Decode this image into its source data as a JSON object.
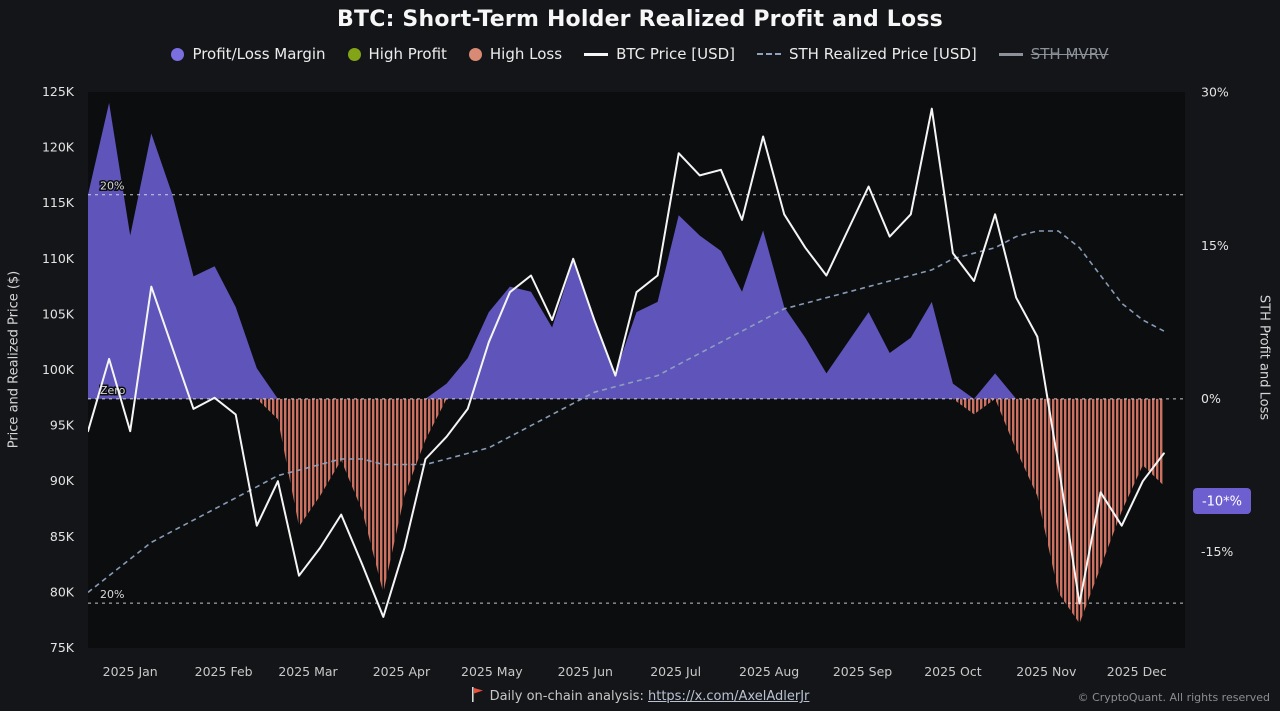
{
  "title": "BTC: Short-Term Holder Realized Profit and Loss",
  "legend": [
    {
      "label": "Profit/Loss Margin",
      "marker": "dot",
      "color": "#7b6fe0",
      "disabled": false
    },
    {
      "label": "High Profit",
      "marker": "dot",
      "color": "#84a417",
      "disabled": false
    },
    {
      "label": "High Loss",
      "marker": "dot",
      "color": "#d98a74",
      "disabled": false
    },
    {
      "label": "BTC Price [USD]",
      "marker": "line",
      "color": "#f5f5f5",
      "disabled": false
    },
    {
      "label": "STH Realized Price [USD]",
      "marker": "dash",
      "color": "#8ea3c0",
      "disabled": false
    },
    {
      "label": "STH MVRV",
      "marker": "line",
      "color": "#8d929a",
      "disabled": true
    }
  ],
  "axes": {
    "left_title": "Price and Realized Price ($)",
    "right_title": "STH Profit and Loss",
    "left_ticks": [
      {
        "v": 125,
        "label": "125K"
      },
      {
        "v": 120,
        "label": "120K"
      },
      {
        "v": 115,
        "label": "115K"
      },
      {
        "v": 110,
        "label": "110K"
      },
      {
        "v": 105,
        "label": "105K"
      },
      {
        "v": 100,
        "label": "100K"
      },
      {
        "v": 95,
        "label": "95K"
      },
      {
        "v": 90,
        "label": "90K"
      },
      {
        "v": 85,
        "label": "85K"
      },
      {
        "v": 80,
        "label": "80K"
      },
      {
        "v": 75,
        "label": "75K"
      }
    ],
    "right_ticks": [
      {
        "v": 30,
        "label": "30%"
      },
      {
        "v": 15,
        "label": "15%"
      },
      {
        "v": 0,
        "label": "0%"
      },
      {
        "v": -15,
        "label": "-15%"
      }
    ],
    "x_ticks": [
      {
        "date": "2025-01-15",
        "label": "2025 Jan"
      },
      {
        "date": "2025-02-15",
        "label": "2025 Feb"
      },
      {
        "date": "2025-03-15",
        "label": "2025 Mar"
      },
      {
        "date": "2025-04-15",
        "label": "2025 Apr"
      },
      {
        "date": "2025-05-15",
        "label": "2025 May"
      },
      {
        "date": "2025-06-15",
        "label": "2025 Jun"
      },
      {
        "date": "2025-07-15",
        "label": "2025 Jul"
      },
      {
        "date": "2025-08-15",
        "label": "2025 Aug"
      },
      {
        "date": "2025-09-15",
        "label": "2025 Sep"
      },
      {
        "date": "2025-10-15",
        "label": "2025 Oct"
      },
      {
        "date": "2025-11-15",
        "label": "2025 Nov"
      },
      {
        "date": "2025-12-15",
        "label": "2025 Dec"
      }
    ]
  },
  "guides": [
    {
      "percent": 20,
      "label": "20%"
    },
    {
      "percent": 0,
      "label": "Zero"
    },
    {
      "percent": -20,
      "label": "20%"
    }
  ],
  "badge": {
    "label": "-10*%",
    "percent": -10,
    "color": "#6e5fd0",
    "text_color": "#ffffff"
  },
  "colors": {
    "plot_bg": "#0c0d0f",
    "area_profit": "#675ac8",
    "area_loss": "#cd7160",
    "btc_line": "#f5f5f5",
    "sth_line": "#8ea3c0",
    "guide": "#e6e6e6"
  },
  "watermark": {
    "text": "CryptoQuant"
  },
  "footer": {
    "prefix": "Daily on-chain analysis: ",
    "link": "https://x.com/AxelAdlerJr",
    "copyright": "© CryptoQuant. All rights reserved"
  },
  "chart_data": {
    "type": "area+line+bar",
    "note": "Profit/Loss margin plotted on right percent axis (purple area above 0, salmon loss bars below 0); BTC price and STH realized price on left $K axis.",
    "x_range": [
      "2025-01-01",
      "2025-12-31"
    ],
    "x": [
      "2025-01-01",
      "2025-01-08",
      "2025-01-15",
      "2025-01-22",
      "2025-01-29",
      "2025-02-05",
      "2025-02-12",
      "2025-02-19",
      "2025-02-26",
      "2025-03-05",
      "2025-03-12",
      "2025-03-19",
      "2025-03-26",
      "2025-04-02",
      "2025-04-09",
      "2025-04-16",
      "2025-04-23",
      "2025-04-30",
      "2025-05-07",
      "2025-05-14",
      "2025-05-21",
      "2025-05-28",
      "2025-06-04",
      "2025-06-11",
      "2025-06-18",
      "2025-06-25",
      "2025-07-02",
      "2025-07-09",
      "2025-07-16",
      "2025-07-23",
      "2025-07-30",
      "2025-08-06",
      "2025-08-13",
      "2025-08-20",
      "2025-08-27",
      "2025-09-03",
      "2025-09-10",
      "2025-09-17",
      "2025-09-24",
      "2025-10-01",
      "2025-10-08",
      "2025-10-15",
      "2025-10-22",
      "2025-10-29",
      "2025-11-05",
      "2025-11-12",
      "2025-11-19",
      "2025-11-26",
      "2025-12-03",
      "2025-12-10",
      "2025-12-17",
      "2025-12-24"
    ],
    "series": [
      {
        "name": "Profit/Loss Margin",
        "role": "margin",
        "axis": "percent",
        "values": [
          20,
          29,
          16,
          26,
          20,
          12,
          13,
          9,
          3,
          -2,
          -12.5,
          -9.5,
          -6,
          -11,
          -19,
          -9.5,
          -4,
          1.5,
          4,
          8.5,
          11,
          10.5,
          7,
          13.5,
          8,
          2.5,
          8.5,
          9.5,
          18,
          16,
          14.5,
          10.5,
          16.5,
          9,
          6,
          2.5,
          5.5,
          8.5,
          4.5,
          6,
          9.5,
          1.5,
          -1.5,
          2.5,
          -5,
          -9.5,
          -19,
          -22,
          -16.5,
          -11,
          -6.5,
          -8.5
        ]
      },
      {
        "name": "BTC Price [USD]",
        "role": "btc",
        "axis": "price_k_usd",
        "values": [
          94.5,
          101.0,
          94.5,
          107.5,
          102.0,
          96.5,
          97.5,
          96.0,
          86.0,
          90.0,
          81.5,
          84.0,
          87.0,
          82.5,
          77.8,
          84.0,
          92.0,
          94.0,
          96.5,
          102.5,
          107.0,
          108.5,
          104.5,
          110.0,
          104.5,
          99.5,
          107.0,
          108.5,
          119.5,
          117.5,
          118.0,
          113.5,
          121.0,
          114.0,
          111.0,
          108.5,
          112.5,
          116.5,
          112.0,
          114.0,
          123.5,
          110.5,
          108.0,
          114.0,
          106.5,
          103.0,
          91.5,
          79.0,
          89.0,
          86.0,
          90.0,
          92.5
        ]
      },
      {
        "name": "STH Realized Price [USD]",
        "role": "sth",
        "axis": "price_k_usd",
        "values": [
          80.0,
          81.5,
          83.0,
          84.5,
          85.5,
          86.5,
          87.5,
          88.5,
          89.5,
          90.5,
          91.0,
          91.5,
          92.0,
          92.0,
          91.5,
          91.5,
          91.5,
          92.0,
          92.5,
          93.0,
          94.0,
          95.0,
          96.0,
          97.0,
          98.0,
          98.5,
          99.0,
          99.5,
          100.5,
          101.5,
          102.5,
          103.5,
          104.5,
          105.5,
          106.0,
          106.5,
          107.0,
          107.5,
          108.0,
          108.5,
          109.0,
          110.0,
          110.5,
          111.0,
          112.0,
          112.5,
          112.5,
          111.0,
          108.5,
          106.0,
          104.5,
          103.5
        ]
      }
    ],
    "left_axis": {
      "label": "Price and Realized Price ($)",
      "unit": "K USD",
      "range": [
        75,
        125
      ]
    },
    "right_axis": {
      "label": "STH Profit and Loss",
      "unit": "%",
      "ticks": [
        30,
        15,
        0,
        -15
      ]
    },
    "alignment": {
      "zero_at_price": 97.4,
      "k_per_percent": 0.918
    },
    "legend_position": "top",
    "grid": false
  }
}
